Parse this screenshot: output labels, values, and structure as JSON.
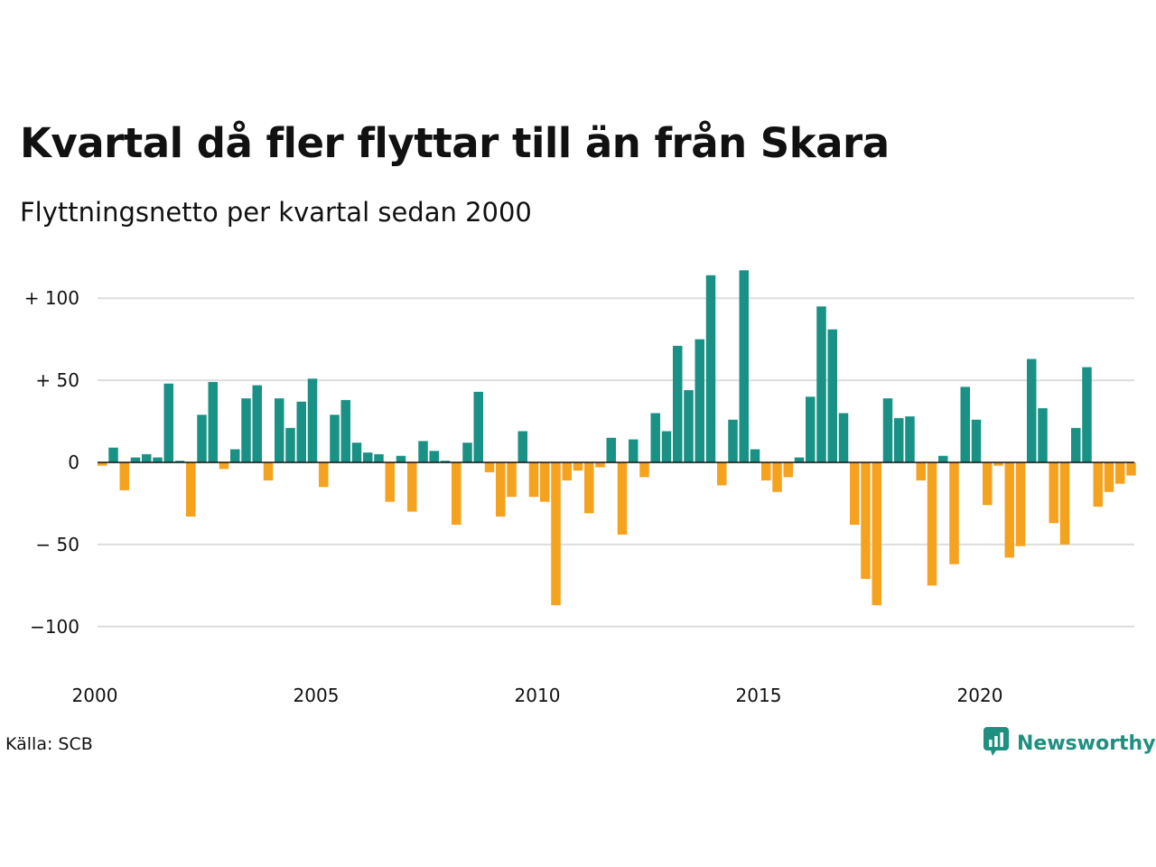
{
  "header": {
    "title": "Kvartal då fler flyttar till än från Skara",
    "subtitle": "Flyttningsnetto per kvartal sedan 2000"
  },
  "footer": {
    "source": "Källa: SCB",
    "brand": "Newsworthy",
    "brand_icon": "newsworthy-logo-icon"
  },
  "colors": {
    "positive": "#1a9185",
    "negative": "#f5a21f",
    "gridline": "#dddddd",
    "zero_line": "#111111",
    "brand": "#1f8f80"
  },
  "chart_data": {
    "type": "bar",
    "title": "Kvartal då fler flyttar till än från Skara",
    "subtitle": "Flyttningsnetto per kvartal sedan 2000",
    "start_year": 2000,
    "periods_per_year": 4,
    "values": [
      -2,
      9,
      -17,
      3,
      5,
      3,
      48,
      1,
      -33,
      29,
      49,
      -4,
      8,
      39,
      47,
      -11,
      39,
      21,
      37,
      51,
      -15,
      29,
      38,
      12,
      6,
      5,
      -24,
      4,
      -30,
      13,
      7,
      1,
      -38,
      12,
      43,
      -6,
      -33,
      -21,
      19,
      -21,
      -24,
      -87,
      -11,
      -5,
      -31,
      -3,
      15,
      -44,
      14,
      -9,
      30,
      19,
      71,
      44,
      75,
      114,
      -14,
      26,
      117,
      8,
      -11,
      -18,
      -9,
      3,
      40,
      95,
      81,
      30,
      -38,
      -71,
      -87,
      39,
      27,
      28,
      -11,
      -75,
      4,
      -62,
      46,
      26,
      -26,
      -2,
      -58,
      -51,
      63,
      33,
      -37,
      -50,
      21,
      58,
      -27,
      -18,
      -13,
      -8
    ],
    "x_ticks": [
      "2000",
      "2005",
      "2010",
      "2015",
      "2020"
    ],
    "y_ticks": [
      {
        "value": 100,
        "label": "+ 100"
      },
      {
        "value": 50,
        "label": "+  50"
      },
      {
        "value": 0,
        "label": "0"
      },
      {
        "value": -50,
        "label": "− 50"
      },
      {
        "value": -100,
        "label": "−100"
      }
    ],
    "ylim": [
      -120,
      120
    ],
    "grid": true,
    "legend": "none"
  }
}
